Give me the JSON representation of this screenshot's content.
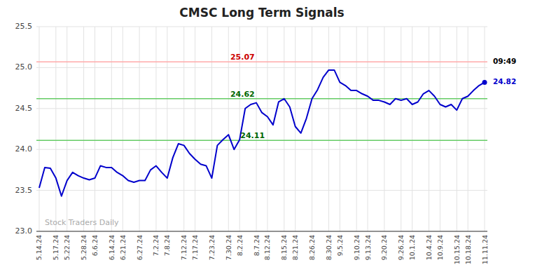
{
  "chart_data": {
    "type": "line",
    "title": "CMSC Long Term Signals",
    "color": "#0000cc",
    "categories": [
      "5.14.24",
      null,
      null,
      "5.17.24",
      null,
      "5.22.24",
      null,
      null,
      "5.28.24",
      null,
      "6.6.24",
      null,
      null,
      "6.14.24",
      null,
      "6.21.24",
      null,
      null,
      "6.27.24",
      null,
      null,
      "7.2.24",
      null,
      "7.8.24",
      null,
      null,
      "7.12.24",
      null,
      "7.17.24",
      null,
      null,
      "7.23.24",
      null,
      null,
      "7.30.24",
      null,
      "8.2.24",
      null,
      null,
      "8.7.24",
      null,
      "8.12.24",
      null,
      null,
      "8.15.24",
      null,
      "8.21.24",
      null,
      null,
      "8.26.24",
      null,
      null,
      "8.30.24",
      null,
      "9.5.24",
      null,
      null,
      "9.10.24",
      null,
      "9.13.24",
      null,
      null,
      "9.20.24",
      null,
      null,
      "9.26.24",
      null,
      "10.1.24",
      null,
      null,
      "10.4.24",
      null,
      "10.9.24",
      null,
      null,
      "10.15.24",
      null,
      "10.18.24",
      null,
      null,
      "11.11.24"
    ],
    "values": [
      23.53,
      23.78,
      23.77,
      23.65,
      23.43,
      23.62,
      23.72,
      23.68,
      23.65,
      23.63,
      23.65,
      23.8,
      23.78,
      23.78,
      23.72,
      23.68,
      23.62,
      23.6,
      23.62,
      23.62,
      23.75,
      23.8,
      23.72,
      23.65,
      23.9,
      24.07,
      24.05,
      23.95,
      23.88,
      23.82,
      23.8,
      23.65,
      24.05,
      24.12,
      24.18,
      24.0,
      24.12,
      24.5,
      24.55,
      24.57,
      24.45,
      24.4,
      24.3,
      24.58,
      24.62,
      24.52,
      24.28,
      24.2,
      24.38,
      24.62,
      24.73,
      24.88,
      24.97,
      24.97,
      24.82,
      24.78,
      24.72,
      24.72,
      24.68,
      24.65,
      24.6,
      24.6,
      24.58,
      24.55,
      24.62,
      24.6,
      24.62,
      24.55,
      24.58,
      24.68,
      24.72,
      24.65,
      24.55,
      24.52,
      24.55,
      24.48,
      24.62,
      24.65,
      24.72,
      24.78,
      24.82
    ],
    "reference_lines": [
      {
        "y": 25.07,
        "color": "#ffaaaa",
        "label": "25.07",
        "label_color": "#cc0000"
      },
      {
        "y": 24.62,
        "color": "#66cc66",
        "label": "24.62",
        "label_color": "#006600"
      },
      {
        "y": 24.11,
        "color": "#66cc66",
        "label": "24.11",
        "label_color": "#006600"
      }
    ],
    "annotations": [
      {
        "text": "09:49",
        "y": 25.07,
        "color": "#000000"
      },
      {
        "text": "24.82",
        "y": 24.82,
        "color": "#0000cc"
      },
      {
        "text": "Stock Traders Daily",
        "y": 23.06,
        "color": "#aaaaaa"
      }
    ],
    "ylim": [
      23.0,
      25.5
    ],
    "yticks": [
      {
        "value": 23.0,
        "label": "23.0"
      },
      23.5,
      {
        "value": 24.0,
        "label": "24.0"
      },
      24.5,
      {
        "value": 25.0,
        "label": "25.0"
      },
      25.5
    ],
    "grid": true
  }
}
